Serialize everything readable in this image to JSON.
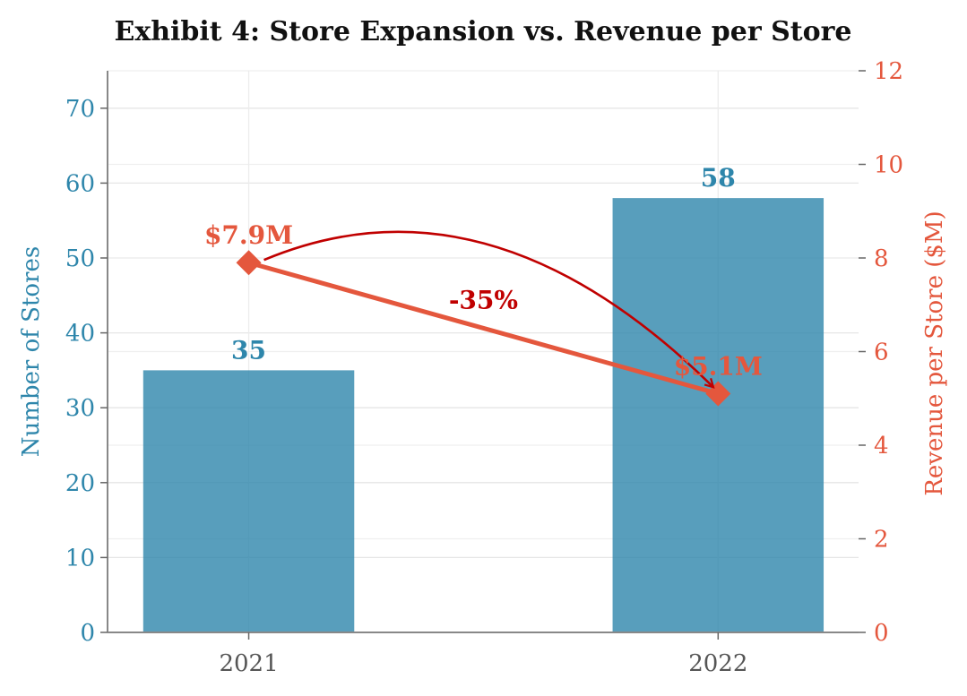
{
  "chart_data": {
    "type": "bar",
    "title": "Exhibit 4: Store Expansion vs. Revenue per Store",
    "categories": [
      "2021",
      "2022"
    ],
    "series": [
      {
        "name": "Number of Stores",
        "type": "bar",
        "axis": "left",
        "values": [
          35,
          58
        ],
        "labels": [
          "35",
          "58"
        ]
      },
      {
        "name": "Revenue per Store ($M)",
        "type": "line",
        "axis": "right",
        "values": [
          7.9,
          5.1
        ],
        "labels": [
          "$7.9M",
          "$5.1M"
        ]
      }
    ],
    "ylabel_left": "Number of Stores",
    "ylabel_right": "Revenue per Store ($M)",
    "ylim_left": [
      0,
      75
    ],
    "yticks_left": [
      0,
      10,
      20,
      30,
      40,
      50,
      60,
      70
    ],
    "ylim_right": [
      0,
      12
    ],
    "yticks_right": [
      0,
      2,
      4,
      6,
      8,
      10,
      12
    ],
    "annotation": {
      "text": "-35%",
      "from": "2021",
      "to": "2022"
    },
    "grid": true,
    "colors": {
      "bars": "#2e86ab",
      "line": "#e4573d",
      "annotation": "#c00000"
    }
  }
}
